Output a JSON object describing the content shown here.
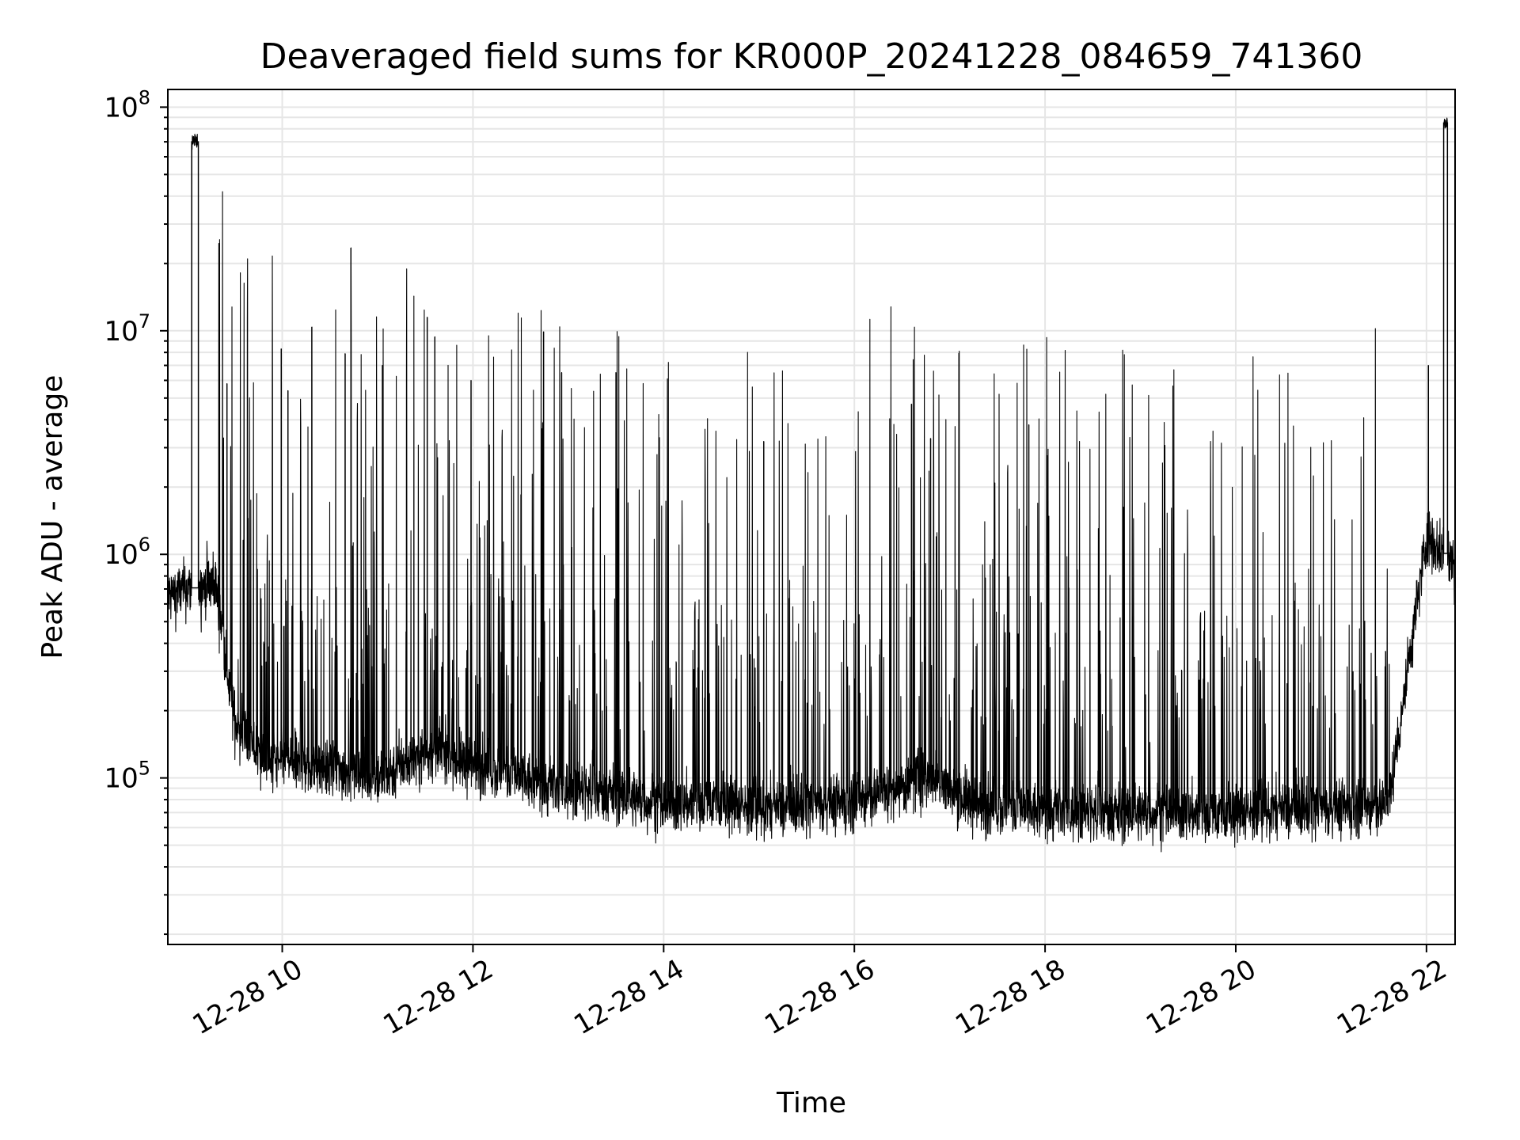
{
  "chart_data": {
    "type": "line",
    "title": "Deaveraged field sums for KR000P_20241228_084659_741360",
    "xlabel": "Time",
    "ylabel": "Peak ADU - average",
    "yscale": "log",
    "ylim": [
      18000,
      120000000
    ],
    "xlim_hours": [
      8.8,
      22.3
    ],
    "grid": true,
    "series_color": "#000000",
    "grid_color": "#e6e6e6",
    "x_ticks": [
      {
        "label": "12-28 10",
        "hour": 10
      },
      {
        "label": "12-28 12",
        "hour": 12
      },
      {
        "label": "12-28 14",
        "hour": 14
      },
      {
        "label": "12-28 16",
        "hour": 16
      },
      {
        "label": "12-28 18",
        "hour": 18
      },
      {
        "label": "12-28 20",
        "hour": 20
      },
      {
        "label": "12-28 22",
        "hour": 22
      }
    ],
    "y_ticks": [
      {
        "base": "10",
        "exp": "5",
        "value": 100000
      },
      {
        "base": "10",
        "exp": "6",
        "value": 1000000
      },
      {
        "base": "10",
        "exp": "7",
        "value": 10000000
      },
      {
        "base": "10",
        "exp": "8",
        "value": 100000000
      }
    ],
    "series": [
      {
        "name": "Peak ADU - average",
        "baseline_profile": {
          "hours": [
            8.8,
            9.0,
            9.3,
            9.5,
            9.8,
            10.5,
            11.0,
            11.5,
            12.0,
            12.8,
            13.5,
            14.0,
            14.5,
            15.0,
            16.0,
            16.8,
            17.3,
            18.0,
            20.0,
            21.6,
            21.8,
            22.0,
            22.3
          ],
          "values": [
            650000,
            700000,
            750000,
            180000,
            120000,
            110000,
            100000,
            130000,
            115000,
            90000,
            85000,
            75000,
            80000,
            72000,
            78000,
            100000,
            75000,
            70000,
            70000,
            75000,
            300000,
            1200000,
            900000
          ]
        },
        "saturation_bursts": [
          {
            "start": 9.05,
            "end": 9.12,
            "value": 70000000
          },
          {
            "start": 22.18,
            "end": 22.22,
            "value": 85000000
          }
        ],
        "labeled_peaks": [
          {
            "hour": 9.42,
            "value": 5800000
          },
          {
            "hour": 9.99,
            "value": 8300000
          },
          {
            "hour": 10.06,
            "value": 5400000
          },
          {
            "hour": 10.31,
            "value": 10400000
          },
          {
            "hour": 10.66,
            "value": 7900000
          },
          {
            "hour": 10.72,
            "value": 23500000
          },
          {
            "hour": 11.05,
            "value": 7000000
          },
          {
            "hour": 11.52,
            "value": 11500000
          },
          {
            "hour": 11.6,
            "value": 9400000
          },
          {
            "hour": 11.98,
            "value": 6000000
          },
          {
            "hour": 12.74,
            "value": 9900000
          },
          {
            "hour": 12.93,
            "value": 6500000
          },
          {
            "hour": 13.5,
            "value": 6500000
          },
          {
            "hour": 15.05,
            "value": 3200000
          },
          {
            "hour": 16.6,
            "value": 4700000
          },
          {
            "hour": 16.8,
            "value": 3300000
          },
          {
            "hour": 17.83,
            "value": 3800000
          },
          {
            "hour": 22.02,
            "value": 7000000
          }
        ]
      }
    ]
  }
}
